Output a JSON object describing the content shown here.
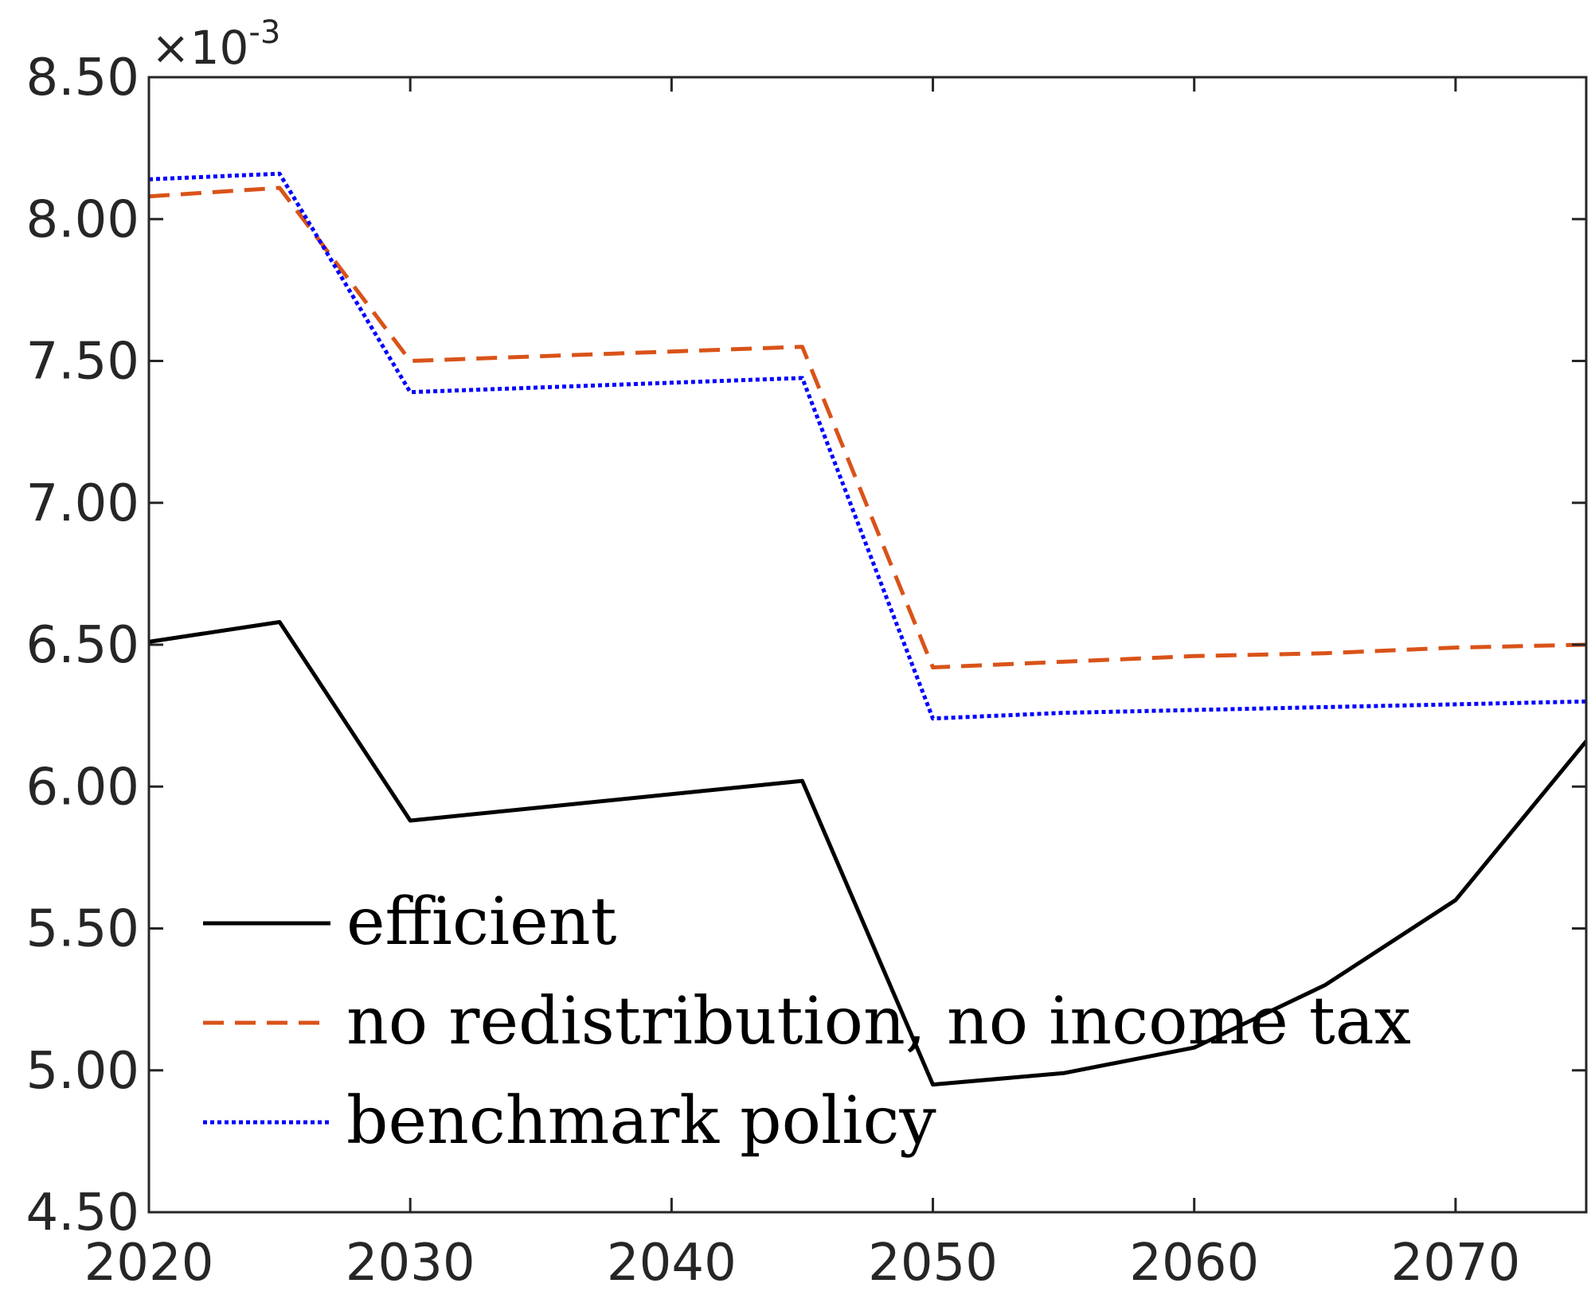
{
  "chart_data": {
    "type": "line",
    "title": "",
    "xlabel": "",
    "ylabel": "",
    "xlim": [
      2020,
      2075
    ],
    "ylim": [
      4.5,
      8.5
    ],
    "y_multiplier": "10",
    "y_multiplier_exponent": "-3",
    "y_multiplier_prefix": "×",
    "xticks": [
      2020,
      2030,
      2040,
      2050,
      2060,
      2070
    ],
    "xtick_labels": [
      "2020",
      "2030",
      "2040",
      "2050",
      "2060",
      "2070"
    ],
    "yticks": [
      4.5,
      5.0,
      5.5,
      6.0,
      6.5,
      7.0,
      7.5,
      8.0,
      8.5
    ],
    "ytick_labels": [
      "4.50",
      "5.00",
      "5.50",
      "6.00",
      "6.50",
      "7.00",
      "7.50",
      "8.00",
      "8.50"
    ],
    "grid": false,
    "legend_position": "bottom-left",
    "x": [
      2020,
      2025,
      2030,
      2045,
      2050,
      2055,
      2060,
      2065,
      2070,
      2075
    ],
    "series": [
      {
        "name": "efficient",
        "color": "#000000",
        "dash": "solid",
        "values": [
          6.51,
          6.58,
          5.88,
          6.02,
          4.95,
          4.99,
          5.08,
          5.3,
          5.6,
          6.16
        ]
      },
      {
        "name": "no redistribution, no income tax",
        "color": "#D95319",
        "dash": "dashed",
        "values": [
          8.08,
          8.11,
          7.5,
          7.55,
          6.42,
          6.44,
          6.46,
          6.47,
          6.49,
          6.5
        ]
      },
      {
        "name": "benchmark policy",
        "color": "#0000FF",
        "dash": "dotted",
        "values": [
          8.14,
          8.16,
          7.39,
          7.44,
          6.24,
          6.26,
          6.27,
          6.28,
          6.29,
          6.3
        ]
      }
    ]
  }
}
